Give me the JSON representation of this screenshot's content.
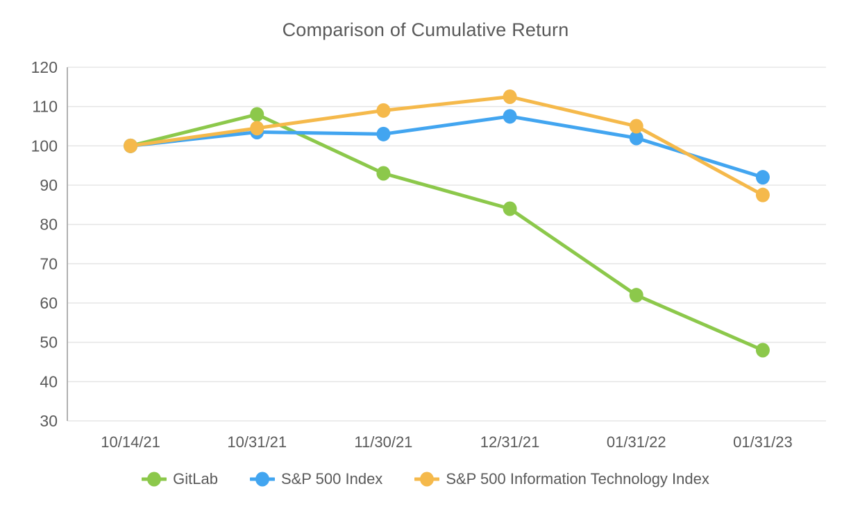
{
  "title": "Comparison of Cumulative Return",
  "chart_data": {
    "type": "line",
    "title": "Comparison of Cumulative Return",
    "categories": [
      "10/14/21",
      "10/31/21",
      "11/30/21",
      "12/31/21",
      "01/31/22",
      "01/31/23"
    ],
    "series": [
      {
        "name": "GitLab",
        "color": "#8CC84B",
        "values": [
          100,
          108,
          93,
          84,
          62,
          48
        ]
      },
      {
        "name": "S&P 500 Index",
        "color": "#42A5F0",
        "values": [
          100,
          103.5,
          103,
          107.5,
          102,
          92
        ]
      },
      {
        "name": "S&P 500 Information Technology Index",
        "color": "#F5B94B",
        "values": [
          100,
          104.5,
          109,
          112.5,
          105,
          87.5
        ]
      }
    ],
    "ylim": [
      30,
      120
    ],
    "ytick_step": 10,
    "grid": "horizontal-only",
    "legend_position": "bottom",
    "xlabel": "",
    "ylabel": ""
  },
  "colors": {
    "text": "#595959",
    "gridline": "#E5E5E5",
    "axis_line": "#B0B0B0",
    "background": "#FFFFFF"
  }
}
